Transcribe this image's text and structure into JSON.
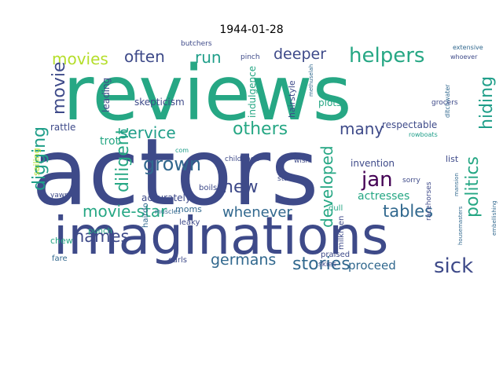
{
  "title": "1944-01-28",
  "palette": {
    "dark_blue": "#3e4a89",
    "teal": "#31688e",
    "green": "#26a784",
    "lime": "#b5de2b",
    "purple": "#472d7b",
    "dark": "#440154",
    "sea": "#1f9e89",
    "yellow": "#d9e021"
  },
  "words": [
    {
      "text": "reviews",
      "color": "green"
    },
    {
      "text": "actors",
      "color": "dark_blue"
    },
    {
      "text": "imaginations",
      "color": "dark_blue"
    },
    {
      "text": "movies",
      "color": "lime"
    },
    {
      "text": "often",
      "color": "dark_blue"
    },
    {
      "text": "run",
      "color": "sea"
    },
    {
      "text": "deeper",
      "color": "dark_blue"
    },
    {
      "text": "helpers",
      "color": "green"
    },
    {
      "text": "movie",
      "color": "dark_blue"
    },
    {
      "text": "digging",
      "color": "sea"
    },
    {
      "text": "diligent",
      "color": "green"
    },
    {
      "text": "service",
      "color": "sea"
    },
    {
      "text": "others",
      "color": "green"
    },
    {
      "text": "many",
      "color": "dark_blue"
    },
    {
      "text": "hiding",
      "color": "sea"
    },
    {
      "text": "politics",
      "color": "green"
    },
    {
      "text": "grown",
      "color": "teal"
    },
    {
      "text": "new",
      "color": "dark_blue"
    },
    {
      "text": "jan",
      "color": "dark"
    },
    {
      "text": "developed",
      "color": "green"
    },
    {
      "text": "movie-star",
      "color": "green"
    },
    {
      "text": "whenever",
      "color": "teal"
    },
    {
      "text": "tables",
      "color": "teal"
    },
    {
      "text": "names",
      "color": "dark_blue"
    },
    {
      "text": "germans",
      "color": "teal"
    },
    {
      "text": "stories",
      "color": "teal"
    },
    {
      "text": "sick",
      "color": "dark_blue"
    },
    {
      "text": "proceed",
      "color": "teal"
    },
    {
      "text": "respectable",
      "color": "dark_blue"
    },
    {
      "text": "indulgence",
      "color": "green"
    },
    {
      "text": "hairstyle",
      "color": "dark_blue"
    },
    {
      "text": "skepticism",
      "color": "dark_blue"
    },
    {
      "text": "plots",
      "color": "green"
    },
    {
      "text": "rattle",
      "color": "dark_blue"
    },
    {
      "text": "invention",
      "color": "dark_blue"
    },
    {
      "text": "actresses",
      "color": "green"
    },
    {
      "text": "racehorses",
      "color": "dark_blue"
    },
    {
      "text": "accurately",
      "color": "dark_blue"
    },
    {
      "text": "moms",
      "color": "teal"
    },
    {
      "text": "childhood",
      "color": "dark_blue"
    },
    {
      "text": "stale",
      "color": "dark_blue"
    },
    {
      "text": "sorry",
      "color": "dark_blue"
    },
    {
      "text": "list",
      "color": "dark_blue"
    },
    {
      "text": "wish",
      "color": "dark_blue"
    },
    {
      "text": "rowboats",
      "color": "sea"
    },
    {
      "text": "ditchwater",
      "color": "teal"
    },
    {
      "text": "methuselah",
      "color": "teal"
    },
    {
      "text": "grocers",
      "color": "dark_blue"
    },
    {
      "text": "trot",
      "color": "green"
    },
    {
      "text": "leading",
      "color": "dark_blue"
    },
    {
      "text": "sailing",
      "color": "lime"
    },
    {
      "text": "butchers",
      "color": "dark_blue"
    },
    {
      "text": "pinch",
      "color": "dark_blue"
    },
    {
      "text": "extensive",
      "color": "teal"
    },
    {
      "text": "whoever",
      "color": "dark_blue"
    },
    {
      "text": "chew",
      "color": "green"
    },
    {
      "text": "fare",
      "color": "teal"
    },
    {
      "text": "punch",
      "color": "green"
    },
    {
      "text": "yawn",
      "color": "dark_blue"
    },
    {
      "text": "hairdo",
      "color": "teal"
    },
    {
      "text": "curls",
      "color": "dark_blue"
    },
    {
      "text": "leaky",
      "color": "dark_blue"
    },
    {
      "text": "boils",
      "color": "dark_blue"
    },
    {
      "text": "muscles",
      "color": "teal"
    },
    {
      "text": "dull",
      "color": "green"
    },
    {
      "text": "milkmen",
      "color": "dark_blue"
    },
    {
      "text": "praised",
      "color": "dark_blue"
    },
    {
      "text": "skies",
      "color": "dark_blue"
    },
    {
      "text": "embellishing",
      "color": "teal"
    },
    {
      "text": "housemasters",
      "color": "teal"
    },
    {
      "text": "mansion",
      "color": "teal"
    },
    {
      "text": "com",
      "color": "sea"
    }
  ]
}
